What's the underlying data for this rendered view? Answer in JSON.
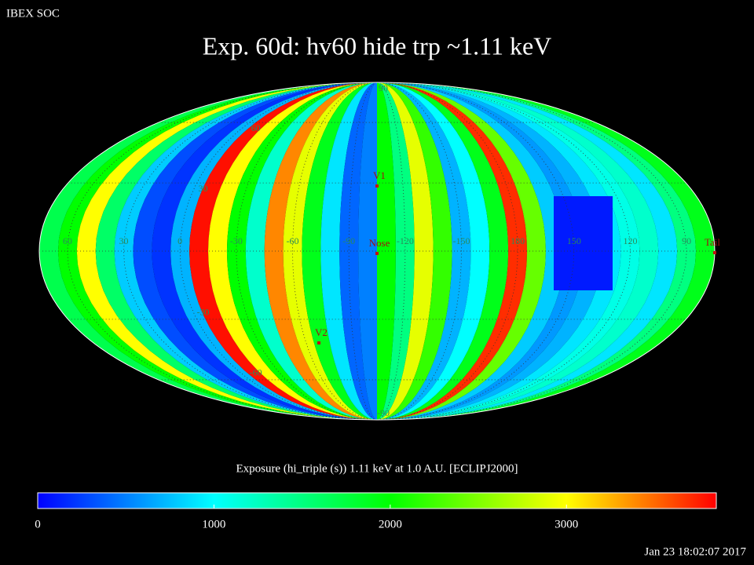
{
  "header": "IBEX SOC",
  "title": "Exp.   60d: hv60 hide trp ~1.11 keV",
  "caption": "Exposure (hi_triple (s))  1.11 keV at 1.0 A.U. [ECLIPJ2000]",
  "timestamp": "Jan 23 18:02:07 2017",
  "map": {
    "center_longitude": -105,
    "longitude_labels": [
      60,
      30,
      0,
      -30,
      -60,
      -90,
      -120,
      -150,
      180,
      150,
      120,
      90
    ],
    "latitude_labels": [
      90,
      60,
      30,
      -30,
      -60,
      -90
    ],
    "stripes": [
      1700,
      2000,
      3000,
      1600,
      800,
      300,
      200,
      700,
      3800,
      3000,
      2000,
      1200,
      3400,
      2900,
      1900,
      900,
      400,
      500,
      2000,
      1500,
      2900,
      2200,
      700,
      1000,
      1900,
      3700,
      2400,
      800,
      600,
      700,
      900,
      1100,
      1200,
      900,
      1500,
      1900
    ],
    "patch": 100,
    "markers": [
      "V1",
      "Nose",
      "V2",
      "Tail"
    ]
  },
  "colorbar": {
    "lim": [
      0,
      3850
    ],
    "ticks": [
      0,
      1000,
      2000,
      3000
    ],
    "colors": [
      "#0000ff",
      "#00ffff",
      "#00ff00",
      "#ffff00",
      "#ff0000"
    ]
  }
}
